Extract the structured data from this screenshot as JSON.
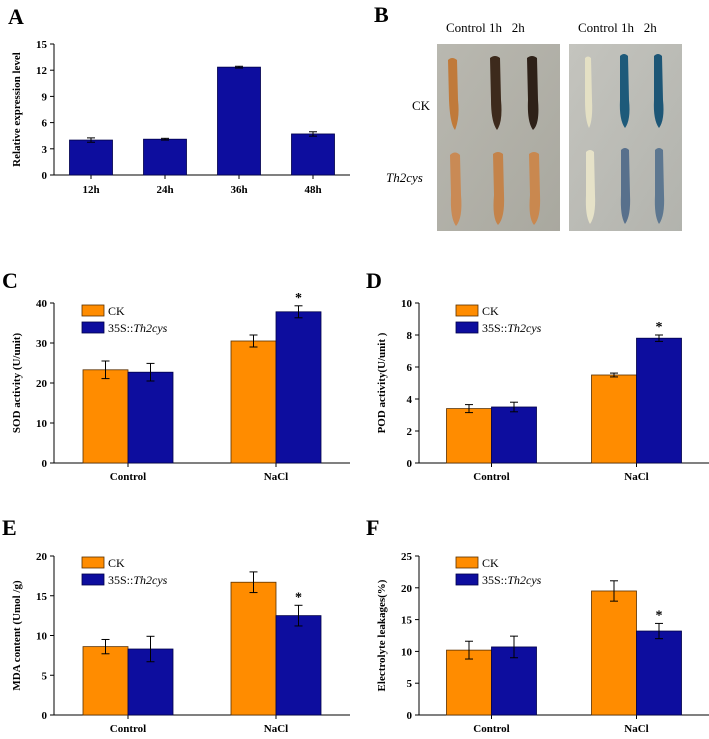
{
  "colors": {
    "ck": "#ff8c00",
    "ck_edge": "#5a3000",
    "trans": "#0d0d9e",
    "trans_edge": "#00004a",
    "single": "#0d0d9e",
    "axis": "#000000"
  },
  "panels": {
    "A": {
      "letter": "A"
    },
    "B": {
      "letter": "B",
      "header_left": "Control 1h   2h",
      "header_right": "Control 1h   2h",
      "row1": "CK",
      "row2": "Th2cys"
    },
    "C": {
      "letter": "C"
    },
    "D": {
      "letter": "D"
    },
    "E": {
      "letter": "E"
    },
    "F": {
      "letter": "F"
    }
  },
  "chart_data": [
    {
      "id": "A",
      "type": "bar",
      "ylabel": "Relative expression level",
      "categories": [
        "12h",
        "24h",
        "36h",
        "48h"
      ],
      "values": [
        4.0,
        4.1,
        12.35,
        4.7
      ],
      "errors": [
        0.25,
        0.1,
        0.1,
        0.25
      ],
      "ylim": [
        0,
        15
      ],
      "yticks": [
        "0",
        "3",
        "6",
        "9",
        "12",
        "15"
      ],
      "grid": false
    },
    {
      "id": "C",
      "type": "bar",
      "ylabel": "SOD activity (U/unit)",
      "categories": [
        "Control",
        "NaCl"
      ],
      "series": [
        {
          "name": "CK",
          "values": [
            23.3,
            30.5
          ],
          "errors": [
            2.2,
            1.5
          ]
        },
        {
          "name": "35S::Th2cys",
          "prefix": "35S::",
          "italic": "Th2cys",
          "values": [
            22.7,
            37.8
          ],
          "errors": [
            2.2,
            1.5
          ]
        }
      ],
      "annotations": [
        {
          "category": 1,
          "series": 1,
          "text": "*"
        }
      ],
      "ylim": [
        0,
        40
      ],
      "yticks": [
        "0",
        "10",
        "20",
        "30",
        "40"
      ],
      "legend": "top-left",
      "grid": false
    },
    {
      "id": "D",
      "type": "bar",
      "ylabel": "POD activity(U/unit )",
      "categories": [
        "Control",
        "NaCl"
      ],
      "series": [
        {
          "name": "CK",
          "values": [
            3.4,
            5.5
          ],
          "errors": [
            0.25,
            0.12
          ]
        },
        {
          "name": "35S::Th2cys",
          "prefix": "35S::",
          "italic": "Th2cys",
          "values": [
            3.5,
            7.8
          ],
          "errors": [
            0.3,
            0.2
          ]
        }
      ],
      "annotations": [
        {
          "category": 1,
          "series": 1,
          "text": "*"
        }
      ],
      "ylim": [
        0,
        10
      ],
      "yticks": [
        "0",
        "2",
        "4",
        "6",
        "8",
        "10"
      ],
      "legend": "top-left",
      "grid": false
    },
    {
      "id": "E",
      "type": "bar",
      "ylabel": "MDA content (Umol /g)",
      "categories": [
        "Control",
        "NaCl"
      ],
      "series": [
        {
          "name": "CK",
          "values": [
            8.6,
            16.7
          ],
          "errors": [
            0.9,
            1.3
          ]
        },
        {
          "name": "35S::Th2cys",
          "prefix": "35S::",
          "italic": "Th2cys",
          "values": [
            8.3,
            12.5
          ],
          "errors": [
            1.6,
            1.3
          ]
        }
      ],
      "annotations": [
        {
          "category": 1,
          "series": 1,
          "text": "*"
        }
      ],
      "ylim": [
        0,
        20
      ],
      "yticks": [
        "0",
        "5",
        "10",
        "15",
        "20"
      ],
      "legend": "top-left",
      "grid": false
    },
    {
      "id": "F",
      "type": "bar",
      "ylabel": "Electrolyte leakages(%)",
      "categories": [
        "Control",
        "NaCl"
      ],
      "series": [
        {
          "name": "CK",
          "values": [
            10.2,
            19.5
          ],
          "errors": [
            1.4,
            1.6
          ]
        },
        {
          "name": "35S::Th2cys",
          "prefix": "35S::",
          "italic": "Th2cys",
          "values": [
            10.7,
            13.2
          ],
          "errors": [
            1.7,
            1.2
          ]
        }
      ],
      "annotations": [
        {
          "category": 1,
          "series": 1,
          "text": "*"
        }
      ],
      "ylim": [
        0,
        25
      ],
      "yticks": [
        "0",
        "5",
        "10",
        "15",
        "20",
        "25"
      ],
      "legend": "top-left",
      "grid": false
    }
  ]
}
